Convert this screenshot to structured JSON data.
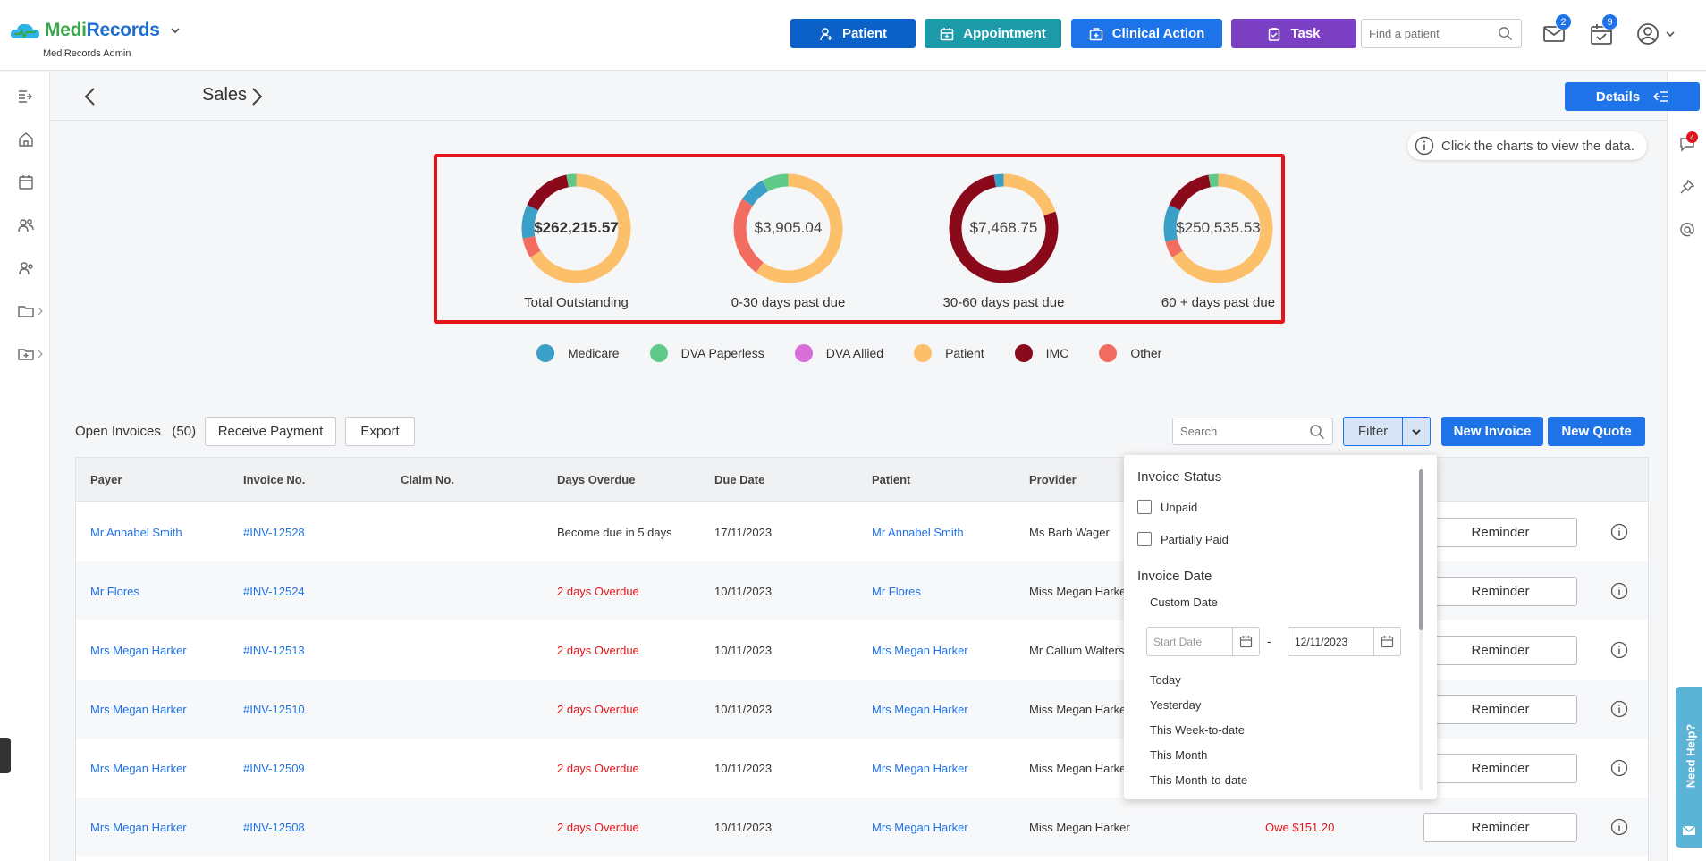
{
  "app": {
    "brand_part1": "Medi",
    "brand_part2": "Records",
    "user_role": "MediRecords Admin"
  },
  "topbar": {
    "buttons": [
      {
        "label": "Patient",
        "icon": "add-person-icon",
        "color": "#0b61c7"
      },
      {
        "label": "Appointment",
        "icon": "calendar-icon",
        "color": "#1d9aa8"
      },
      {
        "label": "Clinical Action",
        "icon": "medical-bag-icon",
        "color": "#1e73e8"
      },
      {
        "label": "Task",
        "icon": "clipboard-icon",
        "color": "#7b3fc4"
      }
    ],
    "search_placeholder": "Find a patient",
    "mail_count": "2",
    "tasks_count": "9"
  },
  "right_sidebar": {
    "chat_count": "4",
    "need_help": "Need Help?"
  },
  "page": {
    "title": "Sales",
    "details_label": "Details",
    "hint": "Click the charts to view the data."
  },
  "colors": {
    "medicare": "#3aa0c8",
    "dva_paperless": "#5fc98a",
    "dva_allied": "#d86fd8",
    "patient": "#fcbf6a",
    "imc": "#8a0a1c",
    "other": "#f26c5f"
  },
  "charts": [
    {
      "value": "$262,215.57",
      "label": "Total Outstanding",
      "bold": true,
      "segments": [
        {
          "key": "patient",
          "pct": 0.66
        },
        {
          "key": "other",
          "pct": 0.06
        },
        {
          "key": "medicare",
          "pct": 0.1
        },
        {
          "key": "imc",
          "pct": 0.15
        },
        {
          "key": "dva_paperless",
          "pct": 0.03
        }
      ]
    },
    {
      "value": "$3,905.04",
      "label": "0-30 days past due",
      "bold": false,
      "segments": [
        {
          "key": "patient",
          "pct": 0.6
        },
        {
          "key": "other",
          "pct": 0.24
        },
        {
          "key": "medicare",
          "pct": 0.08
        },
        {
          "key": "dva_paperless",
          "pct": 0.08
        }
      ]
    },
    {
      "value": "$7,468.75",
      "label": "30-60 days past due",
      "bold": false,
      "segments": [
        {
          "key": "patient",
          "pct": 0.2
        },
        {
          "key": "imc",
          "pct": 0.77
        },
        {
          "key": "medicare",
          "pct": 0.03
        }
      ]
    },
    {
      "value": "$250,535.53",
      "label": "60 + days past due",
      "bold": false,
      "segments": [
        {
          "key": "patient",
          "pct": 0.66
        },
        {
          "key": "other",
          "pct": 0.05
        },
        {
          "key": "medicare",
          "pct": 0.11
        },
        {
          "key": "imc",
          "pct": 0.15
        },
        {
          "key": "dva_paperless",
          "pct": 0.03
        }
      ]
    }
  ],
  "legend": [
    {
      "label": "Medicare",
      "key": "medicare"
    },
    {
      "label": "DVA Paperless",
      "key": "dva_paperless"
    },
    {
      "label": "DVA Allied",
      "key": "dva_allied"
    },
    {
      "label": "Patient",
      "key": "patient"
    },
    {
      "label": "IMC",
      "key": "imc"
    },
    {
      "label": "Other",
      "key": "other"
    }
  ],
  "toolbar": {
    "open_invoices": "Open Invoices",
    "open_count": "(50)",
    "receive_payment": "Receive Payment",
    "export": "Export",
    "search_placeholder": "Search",
    "filter": "Filter",
    "new_invoice": "New Invoice",
    "new_quote": "New Quote"
  },
  "table": {
    "columns": [
      "Payer",
      "Invoice No.",
      "Claim No.",
      "Days Overdue",
      "Due Date",
      "Patient",
      "Provider"
    ],
    "reminder_label": "Reminder",
    "rows": [
      {
        "payer": "Mr Annabel Smith",
        "invoice": "#INV-12528",
        "claim": "",
        "days": "Become due in 5 days",
        "overdue": false,
        "due": "17/11/2023",
        "patient": "Mr Annabel Smith",
        "provider": "Ms Barb Wager",
        "amount": ""
      },
      {
        "payer": "Mr Flores",
        "invoice": "#INV-12524",
        "claim": "",
        "days": "2 days Overdue",
        "overdue": true,
        "due": "10/11/2023",
        "patient": "Mr Flores",
        "provider": "Miss Megan Harker",
        "amount": ""
      },
      {
        "payer": "Mrs Megan Harker",
        "invoice": "#INV-12513",
        "claim": "",
        "days": "2 days Overdue",
        "overdue": true,
        "due": "10/11/2023",
        "patient": "Mrs Megan Harker",
        "provider": "Mr Callum Walters",
        "amount": ""
      },
      {
        "payer": "Mrs Megan Harker",
        "invoice": "#INV-12510",
        "claim": "",
        "days": "2 days Overdue",
        "overdue": true,
        "due": "10/11/2023",
        "patient": "Mrs Megan Harker",
        "provider": "Miss Megan Harker",
        "amount": ""
      },
      {
        "payer": "Mrs Megan Harker",
        "invoice": "#INV-12509",
        "claim": "",
        "days": "2 days Overdue",
        "overdue": true,
        "due": "10/11/2023",
        "patient": "Mrs Megan Harker",
        "provider": "Miss Megan Harker",
        "amount": ""
      },
      {
        "payer": "Mrs Megan Harker",
        "invoice": "#INV-12508",
        "claim": "",
        "days": "2 days Overdue",
        "overdue": true,
        "due": "10/11/2023",
        "patient": "Mrs Megan Harker",
        "provider": "Miss Megan Harker",
        "amount": "Owe $151.20"
      }
    ]
  },
  "filter_dropdown": {
    "status_heading": "Invoice Status",
    "unpaid": "Unpaid",
    "partially_paid": "Partially Paid",
    "date_heading": "Invoice Date",
    "custom_date": "Custom Date",
    "start_placeholder": "Start Date",
    "end_value": "12/11/2023",
    "dash": "-",
    "options": [
      "Today",
      "Yesterday",
      "This Week-to-date",
      "This Month",
      "This Month-to-date"
    ]
  }
}
